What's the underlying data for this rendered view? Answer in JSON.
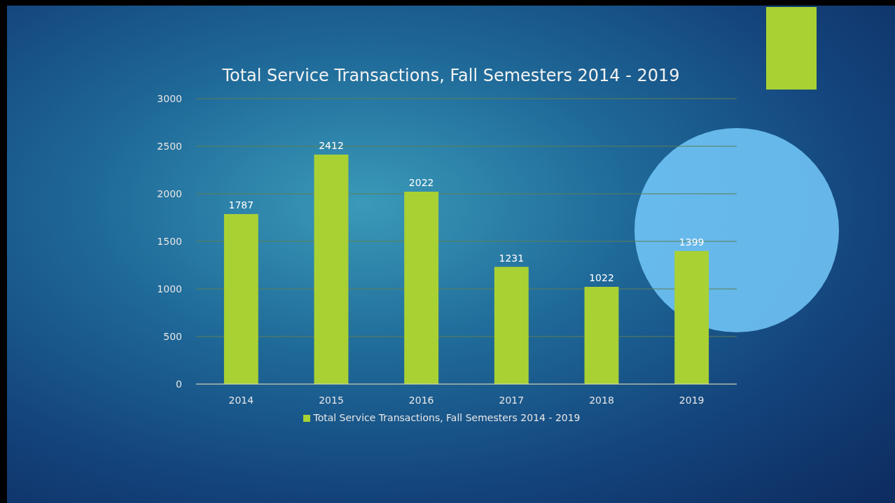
{
  "chart_data": {
    "type": "bar",
    "title": "Total Service Transactions, Fall Semesters 2014 - 2019",
    "categories": [
      "2014",
      "2015",
      "2016",
      "2017",
      "2018",
      "2019"
    ],
    "series": [
      {
        "name": "Total Service Transactions, Fall Semesters 2014 - 2019",
        "color": "#a9d134",
        "values": [
          1787,
          2412,
          2022,
          1231,
          1022,
          1399
        ]
      }
    ],
    "ylim": [
      0,
      3000
    ],
    "yticks": [
      0,
      500,
      1000,
      1500,
      2000,
      2500,
      3000
    ],
    "grid": "y",
    "legend": "bottom",
    "data_labels": true
  }
}
